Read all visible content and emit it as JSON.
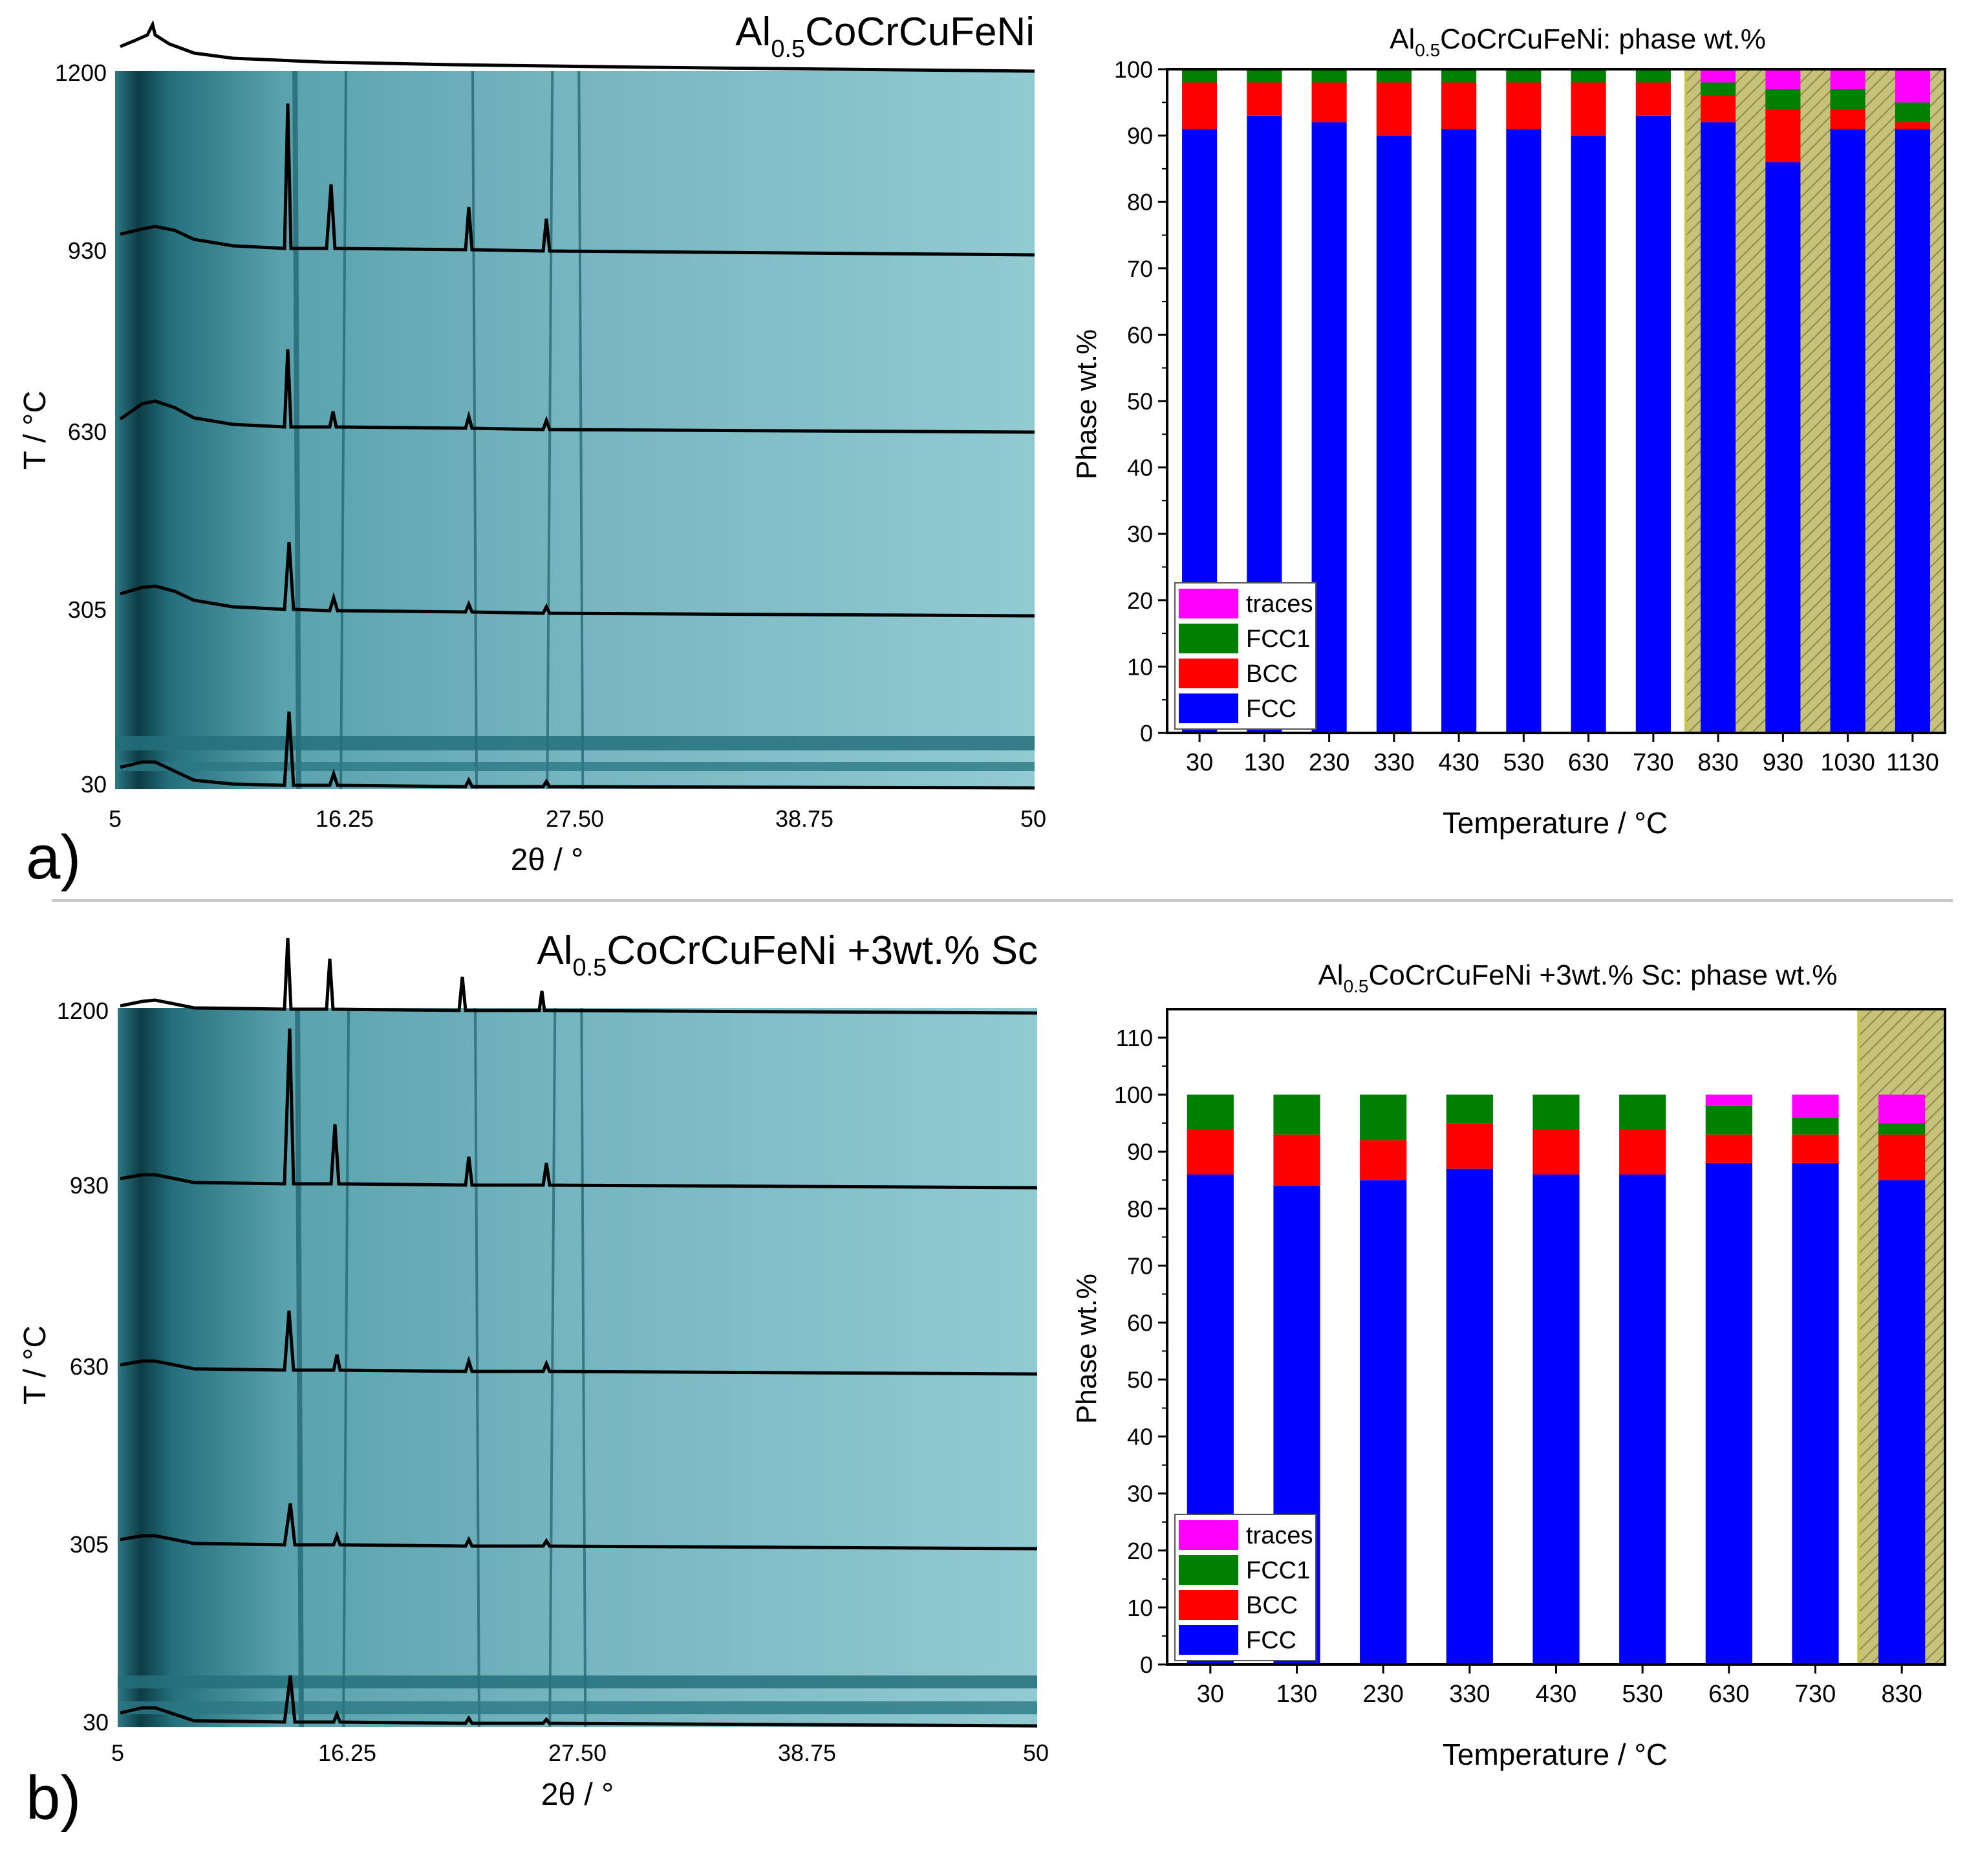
{
  "panels": [
    {
      "label": "a)",
      "heatmap": {
        "title_main": "Al",
        "title_sub": "0.5",
        "title_rest": "CoCrCuFeNi",
        "ylabel": "T / °C",
        "yticks": [
          "1200",
          "930",
          "630",
          "305",
          "30"
        ],
        "xticks": [
          "5",
          "16.25",
          "27.50",
          "38.75",
          "50"
        ],
        "xlabel": "2θ  / °",
        "colormap_color": "#7fbcc4",
        "peak_positions_2theta": [
          13.8,
          16.3,
          22.5,
          26.4,
          27.7
        ]
      },
      "bar_chart": {
        "title_main": "Al",
        "title_sub": "0.5",
        "title_rest": "CoCrCuFeNi: phase wt.%",
        "xlabel": "Temperature / °C",
        "ylabel": "Phase wt.%",
        "highlight_from_category": "830"
      }
    },
    {
      "label": "b)",
      "heatmap": {
        "title_main": "Al",
        "title_sub": "0.5",
        "title_rest": "CoCrCuFeNi +3wt.% Sc",
        "ylabel": "T / °C",
        "yticks": [
          "1200",
          "930",
          "630",
          "305",
          "30"
        ],
        "xticks": [
          "5",
          "16.25",
          "27.50",
          "38.75",
          "50"
        ],
        "xlabel": "2θ  / °",
        "colormap_color": "#7fbcc4",
        "peak_positions_2theta": [
          13.8,
          16.3,
          22.5,
          26.4,
          27.7
        ]
      },
      "bar_chart": {
        "title_main": "Al",
        "title_sub": "0.5",
        "title_rest": "CoCrCuFeNi +3wt.% Sc: phase wt.%",
        "xlabel": "Temperature / °C",
        "ylabel": "Phase wt.%",
        "highlight_from_category": "830"
      }
    }
  ],
  "chart_data": [
    {
      "type": "bar",
      "stacked": true,
      "title": "Al0.5CoCrCuFeNi: phase wt.%",
      "xlabel": "Temperature / °C",
      "ylabel": "Phase wt.%",
      "ylim": [
        0,
        100
      ],
      "yticks": [
        0,
        10,
        20,
        30,
        40,
        50,
        60,
        70,
        80,
        90,
        100
      ],
      "categories": [
        "30",
        "130",
        "230",
        "330",
        "430",
        "530",
        "630",
        "730",
        "830",
        "930",
        "1030",
        "1130"
      ],
      "legend_position": "bottom-left",
      "series": [
        {
          "name": "FCC",
          "color": "#0000ff",
          "values": [
            91,
            93,
            92,
            90,
            91,
            91,
            90,
            93,
            92,
            86,
            91,
            91
          ]
        },
        {
          "name": "BCC",
          "color": "#ff0000",
          "values": [
            7,
            5,
            6,
            8,
            7,
            7,
            8,
            5,
            4,
            8,
            3,
            1
          ]
        },
        {
          "name": "FCC1",
          "color": "#008000",
          "values": [
            2,
            2,
            2,
            2,
            2,
            2,
            2,
            2,
            2,
            3,
            3,
            3
          ]
        },
        {
          "name": "traces",
          "color": "#ff00ff",
          "values": [
            0,
            0,
            0,
            0,
            0,
            0,
            0,
            0,
            2,
            3,
            3,
            5
          ]
        }
      ]
    },
    {
      "type": "bar",
      "stacked": true,
      "title": "Al0.5CoCrCuFeNi +3wt.% Sc: phase wt.%",
      "xlabel": "Temperature / °C",
      "ylabel": "Phase wt.%",
      "ylim": [
        0,
        115
      ],
      "yticks": [
        0,
        10,
        20,
        30,
        40,
        50,
        60,
        70,
        80,
        90,
        100,
        110
      ],
      "categories": [
        "30",
        "130",
        "230",
        "330",
        "430",
        "530",
        "630",
        "730",
        "830"
      ],
      "legend_position": "bottom-left",
      "series": [
        {
          "name": "FCC",
          "color": "#0000ff",
          "values": [
            86,
            84,
            85,
            87,
            86,
            86,
            88,
            88,
            85
          ]
        },
        {
          "name": "BCC",
          "color": "#ff0000",
          "values": [
            8,
            9,
            7,
            8,
            8,
            8,
            5,
            5,
            8
          ]
        },
        {
          "name": "FCC1",
          "color": "#008000",
          "values": [
            6,
            7,
            8,
            5,
            6,
            6,
            5,
            3,
            2
          ]
        },
        {
          "name": "traces",
          "color": "#ff00ff",
          "values": [
            0,
            0,
            0,
            0,
            0,
            0,
            2,
            4,
            5
          ]
        }
      ]
    }
  ]
}
